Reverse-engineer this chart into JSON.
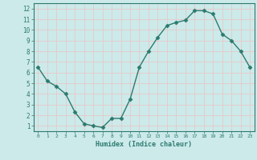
{
  "x": [
    0,
    1,
    2,
    3,
    4,
    5,
    6,
    7,
    8,
    9,
    10,
    11,
    12,
    13,
    14,
    15,
    16,
    17,
    18,
    19,
    20,
    21,
    22,
    23
  ],
  "y": [
    6.5,
    5.2,
    4.7,
    4.0,
    2.3,
    1.2,
    1.0,
    0.85,
    1.7,
    1.7,
    3.5,
    6.5,
    8.0,
    9.3,
    10.4,
    10.7,
    10.9,
    11.8,
    11.8,
    11.5,
    9.6,
    9.0,
    8.0,
    6.5
  ],
  "xlabel": "Humidex (Indice chaleur)",
  "xlim": [
    -0.5,
    23.5
  ],
  "ylim": [
    0.5,
    12.5
  ],
  "yticks": [
    1,
    2,
    3,
    4,
    5,
    6,
    7,
    8,
    9,
    10,
    11,
    12
  ],
  "xticks": [
    0,
    1,
    2,
    3,
    4,
    5,
    6,
    7,
    8,
    9,
    10,
    11,
    12,
    13,
    14,
    15,
    16,
    17,
    18,
    19,
    20,
    21,
    22,
    23
  ],
  "line_color": "#2d7a6e",
  "bg_color": "#cceaea",
  "grid_color": "#e8c8c8",
  "marker_size": 2.5
}
